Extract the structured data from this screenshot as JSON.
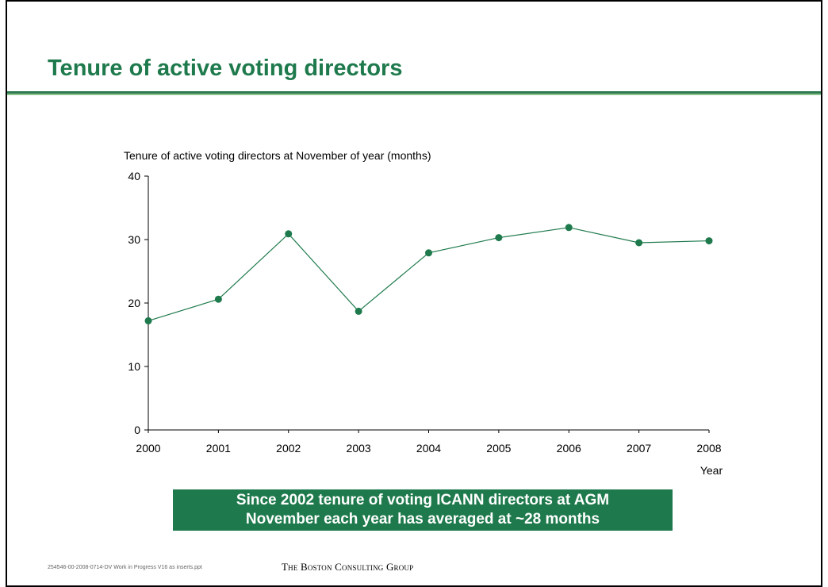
{
  "slide": {
    "title": "Tenure of active voting directors",
    "callout": {
      "line1": "Since 2002 tenure of voting ICANN directors at AGM",
      "line2": "November each year has averaged at ~28 months"
    },
    "footer_id": "254546-00-2008-0714-DV Work in Progress V16 as inserts.ppt",
    "logo": "The Boston Consulting Group"
  },
  "colors": {
    "accent": "#1e7a4c",
    "rule_dark": "#2f7a4f",
    "rule_light": "#8bc48f"
  },
  "chart_data": {
    "type": "line",
    "title": "Tenure of active voting directors at November of year (months)",
    "xlabel": "Year",
    "ylabel": "",
    "x": [
      "2000",
      "2001",
      "2002",
      "2003",
      "2004",
      "2005",
      "2006",
      "2007",
      "2008"
    ],
    "series": [
      {
        "values": [
          17.2,
          20.6,
          30.9,
          18.7,
          27.9,
          30.3,
          31.9,
          29.5,
          29.8
        ]
      }
    ],
    "ylim": [
      0,
      40
    ],
    "yticks": [
      0,
      10,
      20,
      30,
      40
    ],
    "grid": false,
    "legend": "none"
  }
}
